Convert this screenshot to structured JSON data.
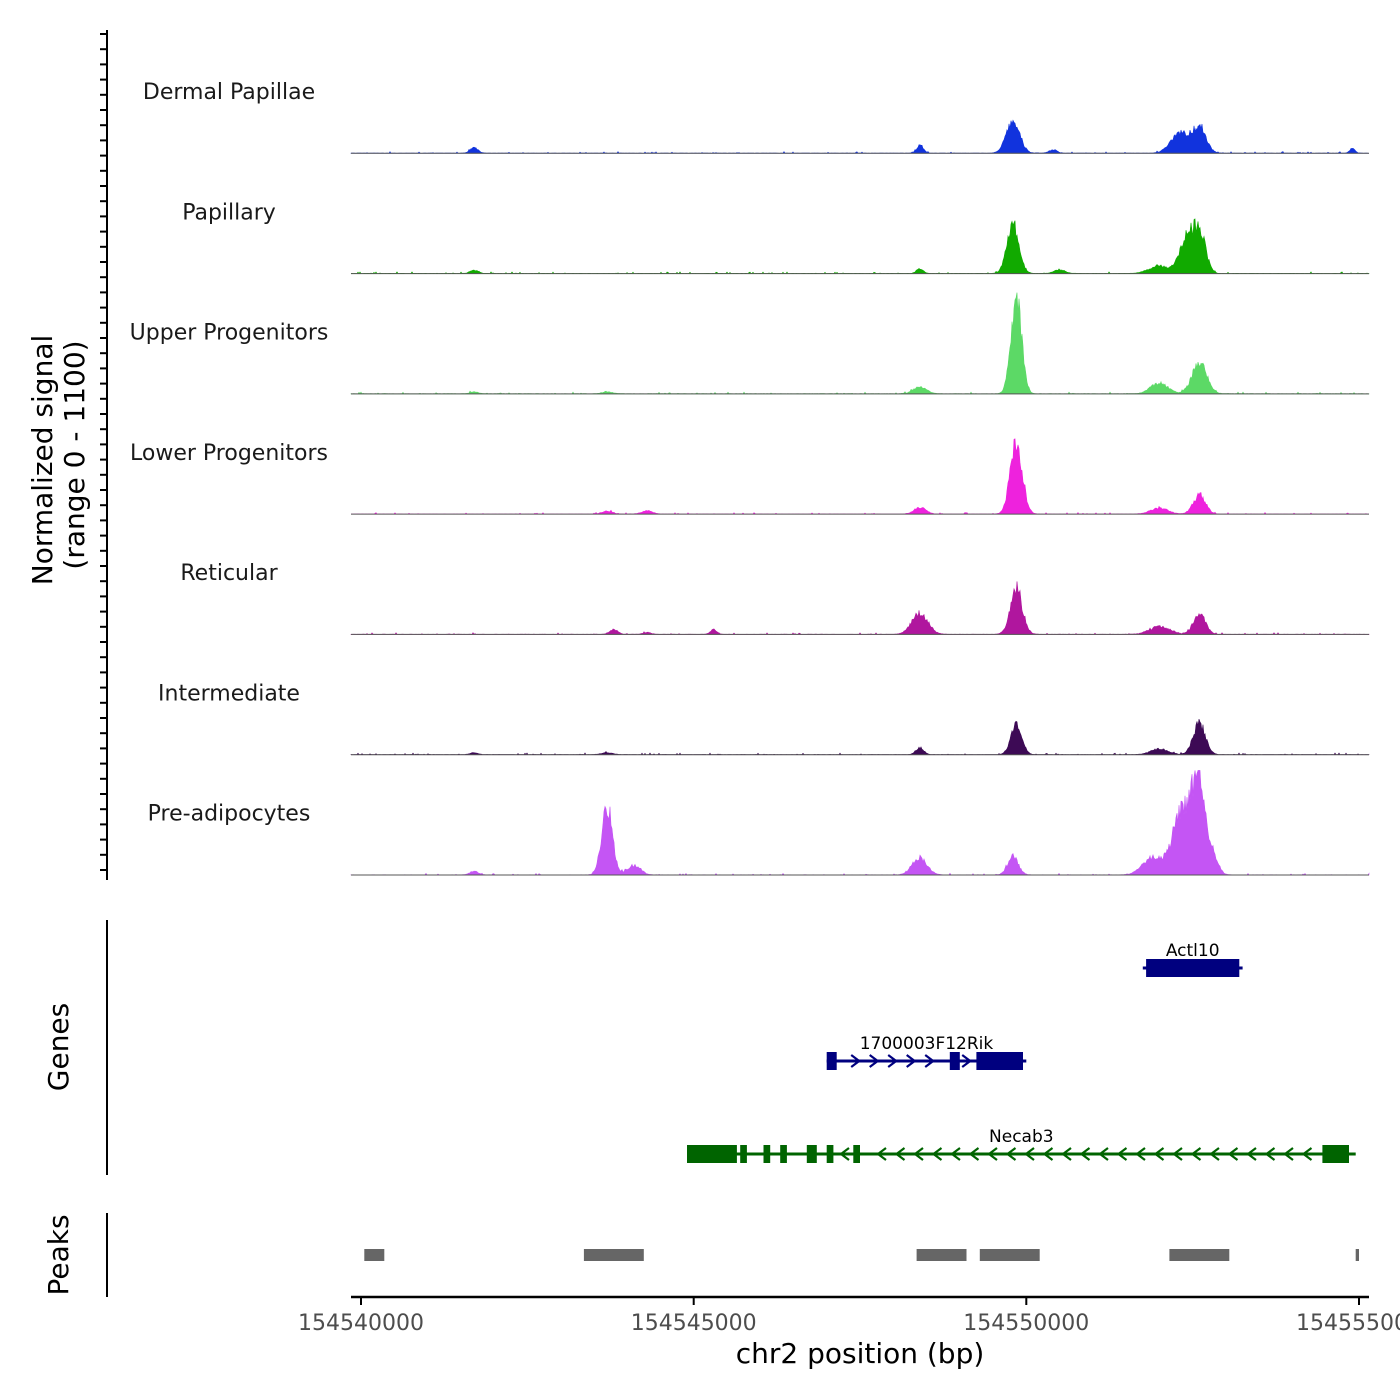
{
  "chart_data": {
    "type": "area",
    "title": "",
    "ylabel": "Normalized signal",
    "ylabel_range": "(range 0 - 1100)",
    "ylim": [
      0,
      1100
    ],
    "xlabel": "chr2 position (bp)",
    "xlim": [
      154539850,
      154555150
    ],
    "x_ticks": [
      154540000,
      154545000,
      154550000,
      154555000
    ],
    "x_tick_labels": [
      "154540000",
      "154545000",
      "154550000",
      "154555000"
    ],
    "genes_label": "Genes",
    "peaks_label": "Peaks",
    "tracks": [
      {
        "name": "Dermal Papillae",
        "color": "#1133dd",
        "peaks": [
          [
            154541700,
            55,
            60
          ],
          [
            154548400,
            80,
            50
          ],
          [
            154549800,
            330,
            100
          ],
          [
            154550400,
            35,
            60
          ],
          [
            154552300,
            220,
            130
          ],
          [
            154552600,
            280,
            100
          ],
          [
            154554900,
            50,
            40
          ]
        ]
      },
      {
        "name": "Papillary",
        "color": "#11aa00",
        "peaks": [
          [
            154541700,
            35,
            60
          ],
          [
            154548400,
            50,
            50
          ],
          [
            154549800,
            500,
            90
          ],
          [
            154550500,
            40,
            80
          ],
          [
            154552000,
            80,
            150
          ],
          [
            154552400,
            370,
            100
          ],
          [
            154552600,
            470,
            90
          ]
        ]
      },
      {
        "name": "Upper Progenitors",
        "color": "#5cd966",
        "peaks": [
          [
            154541700,
            20,
            60
          ],
          [
            154543700,
            20,
            80
          ],
          [
            154548400,
            70,
            100
          ],
          [
            154549850,
            1000,
            80
          ],
          [
            154552000,
            110,
            130
          ],
          [
            154552600,
            320,
            110
          ]
        ]
      },
      {
        "name": "Lower Progenitors",
        "color": "#ee22dd",
        "peaks": [
          [
            154543700,
            30,
            80
          ],
          [
            154544300,
            35,
            80
          ],
          [
            154548400,
            70,
            90
          ],
          [
            154549850,
            740,
            90
          ],
          [
            154552000,
            60,
            130
          ],
          [
            154552600,
            200,
            90
          ]
        ]
      },
      {
        "name": "Reticular",
        "color": "#b0169e",
        "peaks": [
          [
            154543800,
            50,
            60
          ],
          [
            154544300,
            20,
            60
          ],
          [
            154545300,
            50,
            50
          ],
          [
            154548400,
            220,
            120
          ],
          [
            154549850,
            470,
            90
          ],
          [
            154552000,
            80,
            150
          ],
          [
            154552600,
            210,
            90
          ]
        ]
      },
      {
        "name": "Intermediate",
        "color": "#3d0a55",
        "peaks": [
          [
            154541700,
            20,
            60
          ],
          [
            154543700,
            20,
            80
          ],
          [
            154548400,
            70,
            60
          ],
          [
            154549850,
            330,
            80
          ],
          [
            154552000,
            60,
            130
          ],
          [
            154552600,
            330,
            90
          ]
        ]
      },
      {
        "name": "Pre-adipocytes",
        "color": "#c455f4",
        "peaks": [
          [
            154541700,
            40,
            60
          ],
          [
            154543700,
            720,
            80
          ],
          [
            154544100,
            100,
            100
          ],
          [
            154548400,
            180,
            110
          ],
          [
            154549800,
            190,
            80
          ],
          [
            154551900,
            180,
            150
          ],
          [
            154552350,
            700,
            140
          ],
          [
            154552600,
            1000,
            90
          ],
          [
            154552800,
            200,
            80
          ]
        ]
      }
    ],
    "genes": [
      {
        "name": "Actl10",
        "color": "#00007f",
        "start": 154551750,
        "end": 154553250,
        "strand": "-",
        "exons": [
          [
            154551800,
            154553200
          ]
        ]
      },
      {
        "name": "1700003F12Rik",
        "color": "#00007f",
        "start": 154547000,
        "end": 154550000,
        "strand": "+",
        "exons": [
          [
            154547000,
            154547150
          ],
          [
            154548850,
            154549000
          ],
          [
            154549250,
            154549950
          ]
        ]
      },
      {
        "name": "Necab3",
        "color": "#006400",
        "start": 154544900,
        "end": 154554950,
        "strand": "-",
        "exons": [
          [
            154544900,
            154545650
          ],
          [
            154545700,
            154545800
          ],
          [
            154546050,
            154546150
          ],
          [
            154546300,
            154546400
          ],
          [
            154546700,
            154546850
          ],
          [
            154547000,
            154547100
          ],
          [
            154547400,
            154547500
          ],
          [
            154554450,
            154554850
          ]
        ]
      }
    ],
    "peak_regions": [
      [
        154540050,
        154540350
      ],
      [
        154543350,
        154544250
      ],
      [
        154548350,
        154549100
      ],
      [
        154549300,
        154550200
      ],
      [
        154552150,
        154553050
      ],
      [
        154554950,
        154555000
      ]
    ]
  }
}
